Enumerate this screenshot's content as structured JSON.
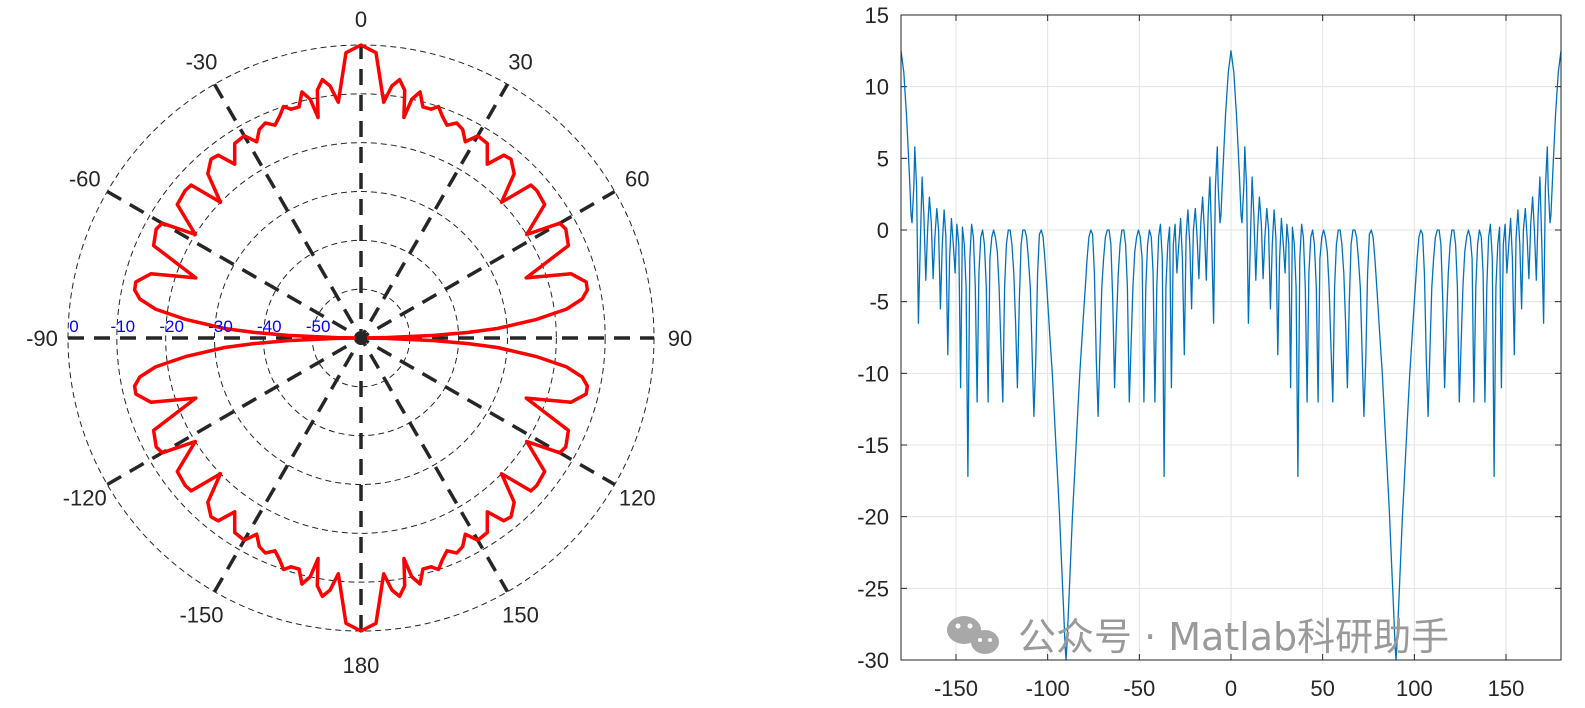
{
  "chart_data": [
    {
      "type": "line",
      "subtype": "polar",
      "title": "",
      "theta_tick_labels": [
        "0",
        "30",
        "60",
        "90",
        "120",
        "150",
        "180",
        "-150",
        "-120",
        "-90",
        "-60",
        "-30"
      ],
      "r_tick_labels": [
        "0",
        "-10",
        "-20",
        "-30",
        "-40",
        "-50"
      ],
      "r_range_db": [
        -60,
        0
      ],
      "grid": true,
      "line_color": "#ff0000",
      "series": [
        {
          "theta_deg": [
            0,
            3,
            5.5,
            7,
            8.5,
            10,
            11,
            12,
            13.5,
            15,
            17,
            18.5,
            20,
            22,
            24,
            26,
            28,
            30,
            33,
            36,
            38,
            40,
            43,
            46,
            48,
            50,
            54,
            58,
            60,
            62,
            66,
            70,
            73,
            76,
            78,
            80,
            82,
            84,
            86,
            87,
            88,
            89,
            90
          ],
          "r_db": [
            0,
            -1.5,
            -11.5,
            -8,
            -6.5,
            -8.5,
            -14,
            -10,
            -8.2,
            -11,
            -11,
            -10,
            -11.5,
            -13,
            -11.8,
            -12.5,
            -14.5,
            -12.2,
            -12.5,
            -16,
            -12.5,
            -12.2,
            -14,
            -20,
            -13.2,
            -13,
            -13.5,
            -20,
            -13,
            -12.5,
            -13.5,
            -24,
            -15,
            -12.5,
            -12.6,
            -14,
            -17.5,
            -24,
            -32,
            -38,
            -45,
            -55,
            -60
          ]
        }
      ]
    },
    {
      "type": "line",
      "title": "",
      "xlabel": "",
      "ylabel": "",
      "xlim": [
        -180,
        180
      ],
      "ylim": [
        -30,
        15
      ],
      "x_ticks": [
        -150,
        -100,
        -50,
        0,
        50,
        100,
        150
      ],
      "y_ticks": [
        15,
        10,
        5,
        0,
        -5,
        -10,
        -15,
        -20,
        -25,
        -30
      ],
      "grid": true,
      "line_color": "#0072bd",
      "series": [
        {
          "x": [
            0,
            1.5,
            3,
            4.5,
            5.5,
            6,
            7,
            7.5,
            8.5,
            9.5,
            10.5,
            11.5,
            12.5,
            13.5,
            14.5,
            15.5,
            16.5,
            17.5,
            18.5,
            19.5,
            20.5,
            21.5,
            22.5,
            23.5,
            24.5,
            25.5,
            26.5,
            27.5,
            28.5,
            29.5,
            30.5,
            31.5,
            32.5,
            33.5,
            34.5,
            35.5,
            36.5,
            37.5,
            38.5,
            39.5,
            40.5,
            41.5,
            42.5,
            43.5,
            44.5,
            45.5,
            46.5,
            47.5,
            48.5,
            49.5,
            50.5,
            51.5,
            52.5,
            53.5,
            54.5,
            55.5,
            56.5,
            57.5,
            58.5,
            59.5,
            60.5,
            61.5,
            62.5,
            63.5,
            64.5,
            65.5,
            66.5,
            67.5,
            68.5,
            69.5,
            70.5,
            71.5,
            72.5,
            73.5,
            74.5,
            75.5,
            76.5,
            77.5,
            78.5,
            79.5,
            80.5,
            81.5,
            82.5,
            83.5,
            84.5,
            85.5,
            86.5,
            87.5,
            88.5,
            89.5,
            90
          ],
          "y": [
            12.5,
            11,
            8,
            4,
            1,
            0.5,
            3,
            5.8,
            3,
            -6.5,
            -1,
            3.7,
            1,
            -3.5,
            0,
            2.3,
            0.5,
            -3.4,
            -0.5,
            1.5,
            0,
            -5.5,
            -1,
            1.4,
            -0.5,
            -8.7,
            -2,
            0.8,
            -1,
            -3,
            0.4,
            -1,
            -11,
            0.2,
            -1,
            -4,
            -17.2,
            -2,
            0.4,
            -0.5,
            -4,
            -12,
            -3,
            -0.5,
            0,
            -1,
            -4,
            -12,
            -2,
            -0.5,
            0,
            -0.5,
            -1.5,
            -4,
            -8,
            -12,
            -4,
            -1,
            0,
            0,
            -1,
            -3,
            -6.5,
            -11,
            -5,
            -1,
            0,
            0,
            -0.5,
            -2,
            -4,
            -8.5,
            -13,
            -9,
            -3,
            -0.3,
            0,
            -0.5,
            -2,
            -4,
            -6,
            -8,
            -10,
            -12.5,
            -15,
            -17.5,
            -20,
            -23,
            -26,
            -29,
            -30
          ]
        }
      ]
    }
  ],
  "watermark": {
    "text": "公众号 · Matlab科研助手",
    "icon": "wechat-icon"
  }
}
